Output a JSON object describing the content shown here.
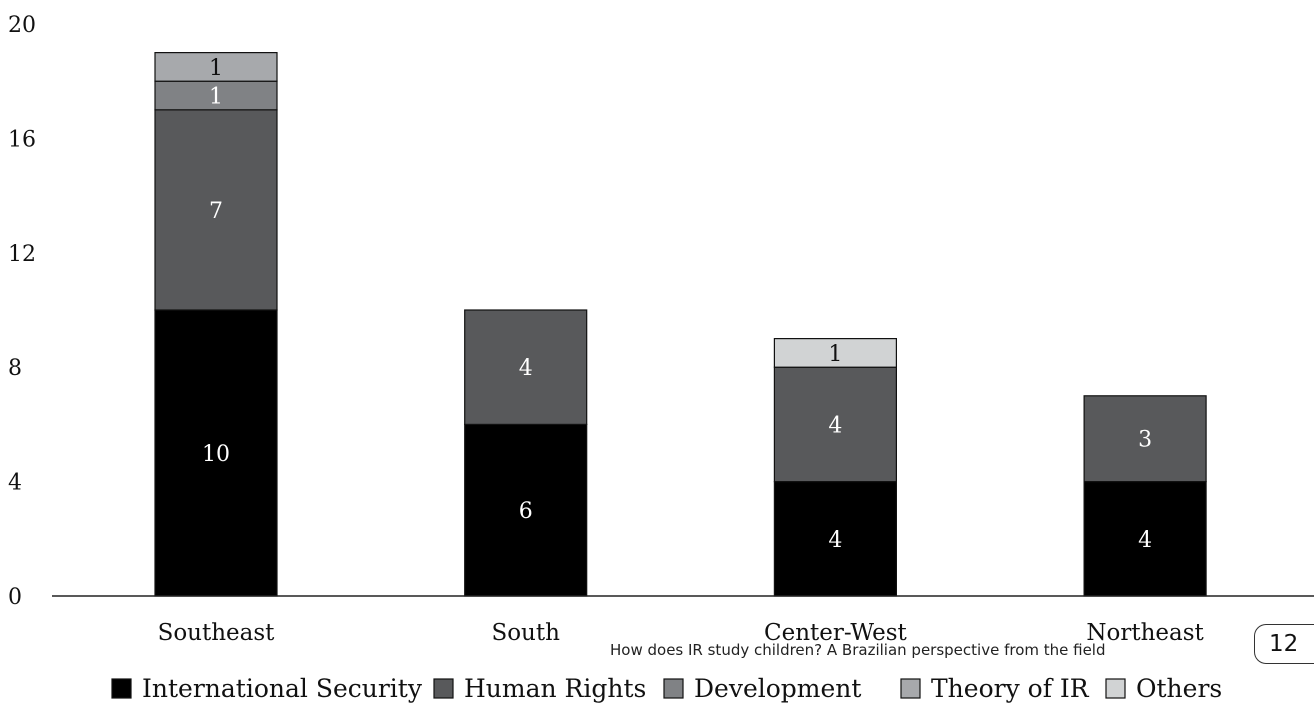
{
  "chart_data": {
    "type": "bar",
    "stacked": true,
    "categories": [
      "Southeast",
      "South",
      "Center-West",
      "Northeast"
    ],
    "series": [
      {
        "name": "International Security",
        "values": [
          10,
          6,
          4,
          4
        ],
        "color": "#000000"
      },
      {
        "name": "Human Rights",
        "values": [
          7,
          4,
          4,
          3
        ],
        "color": "#58595b"
      },
      {
        "name": "Development",
        "values": [
          1,
          0,
          0,
          0
        ],
        "color": "#808285"
      },
      {
        "name": "Theory of IR",
        "values": [
          1,
          0,
          0,
          0
        ],
        "color": "#a7a9ac"
      },
      {
        "name": "Others",
        "values": [
          0,
          0,
          1,
          0
        ],
        "color": "#d1d3d4"
      }
    ],
    "yticks": [
      0,
      4,
      8,
      12,
      16,
      20
    ],
    "ylim": [
      0,
      20
    ],
    "legend_position": "bottom",
    "grid": false
  },
  "footer": {
    "caption": "How does IR study children? A Brazilian perspective from the field",
    "page_number": "12"
  }
}
